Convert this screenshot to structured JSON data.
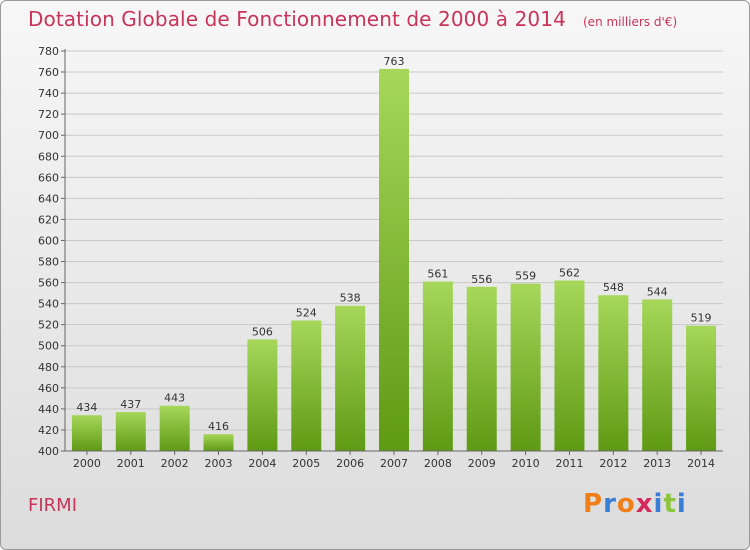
{
  "header": {
    "title": "Dotation Globale de Fonctionnement de 2000 à 2014",
    "subtitle": "(en milliers d'€)"
  },
  "footer": {
    "commune": "FIRMI",
    "brand": "Proxiti"
  },
  "colors": {
    "title": "#c8345a",
    "bar_top": "#a6d75a",
    "bar_bottom": "#5f9a14",
    "grid": "#c9c9c9",
    "brand_letters": [
      "#f07f1a",
      "#3a7fd5",
      "#f07f1a",
      "#d6285a",
      "#3a7fd5",
      "#8cc43c",
      "#3a7fd5"
    ]
  },
  "chart_data": {
    "type": "bar",
    "categories": [
      "2000",
      "2001",
      "2002",
      "2003",
      "2004",
      "2005",
      "2006",
      "2007",
      "2008",
      "2009",
      "2010",
      "2011",
      "2012",
      "2013",
      "2014"
    ],
    "values": [
      434,
      437,
      443,
      416,
      506,
      524,
      538,
      763,
      561,
      556,
      559,
      562,
      548,
      544,
      519
    ],
    "data_labels": [
      "434",
      "437",
      "443",
      "416",
      "506",
      "524",
      "538",
      "763",
      "561",
      "556",
      "559",
      "562",
      "548",
      "544",
      "519"
    ],
    "yticks": [
      "400",
      "420",
      "440",
      "460",
      "480",
      "500",
      "520",
      "540",
      "560",
      "580",
      "600",
      "620",
      "640",
      "660",
      "680",
      "700",
      "720",
      "740",
      "760",
      "780"
    ],
    "ylim": [
      400,
      780
    ],
    "grid": "horizontal",
    "legend": "none"
  }
}
